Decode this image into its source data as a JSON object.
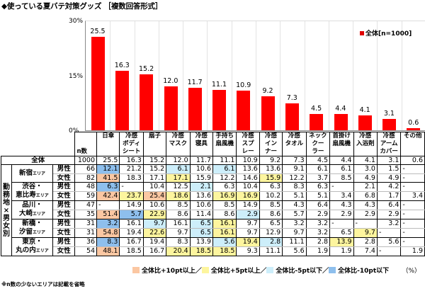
{
  "title": "◆使っている夏バテ対策グッズ ［複数回答形式］",
  "chart_data": {
    "type": "bar",
    "title": "使っている夏バテ対策グッズ ［複数回答形式］",
    "categories": [
      "日傘",
      "冷感ボディシート",
      "扇子",
      "冷感マスク",
      "冷感寝具",
      "手持ち扇風機",
      "冷感スプレー",
      "冷感インナー",
      "冷感タオル",
      "ネッククーラー",
      "首掛け扇風機",
      "冷感入浴剤",
      "冷感アームカバー",
      "その他"
    ],
    "series": [
      {
        "name": "全体[n=1000]",
        "color": "#ff0000",
        "values": [
          25.5,
          16.3,
          15.2,
          12.0,
          11.7,
          11.1,
          10.9,
          9.2,
          7.3,
          4.5,
          4.4,
          4.1,
          3.1,
          0.6
        ]
      }
    ],
    "value_labels": [
      "25.5",
      "16.3",
      "15.2",
      "12.0",
      "11.7",
      "11.1",
      "10.9",
      "9.2",
      "7.3",
      "4.5",
      "4.4",
      "4.1",
      "3.1",
      "0.6"
    ],
    "xlabel": "",
    "ylabel": "",
    "ylim": [
      0,
      30
    ],
    "yticks": [
      "0%",
      "15%",
      "30%"
    ],
    "grid": "vertical",
    "legend_position": "top-right"
  },
  "legend": {
    "label": "全体[n=1000]"
  },
  "table": {
    "n_header": "n数",
    "headers": [
      [
        "日傘"
      ],
      [
        "冷感",
        "ボディ",
        "シート"
      ],
      [
        "扇子"
      ],
      [
        "冷感",
        "マスク"
      ],
      [
        "冷感",
        "寝具"
      ],
      [
        "手持ち",
        "扇風機"
      ],
      [
        "冷感",
        "スプ",
        "レー"
      ],
      [
        "冷感",
        "イン",
        "ナー"
      ],
      [
        "冷感",
        "タオル"
      ],
      [
        "ネック",
        "クー",
        "ラー"
      ],
      [
        "首掛け",
        "扇風機"
      ],
      [
        "冷感",
        "入浴剤"
      ],
      [
        "冷感",
        "アーム",
        "カバー"
      ],
      [
        "その他"
      ]
    ],
    "total": {
      "label": "全体",
      "n": "1000",
      "values": [
        "25.5",
        "16.3",
        "15.2",
        "12.0",
        "11.7",
        "11.1",
        "10.9",
        "9.2",
        "7.3",
        "4.5",
        "4.4",
        "4.1",
        "3.1",
        "0.6"
      ]
    },
    "group_label": "勤務地×男女別",
    "group_label_chars": [
      "勤",
      "務",
      "地",
      "×",
      "男",
      "女",
      "別"
    ],
    "area_suffix": "エリア",
    "areas": [
      {
        "name_lines": [
          "新宿"
        ],
        "rows": [
          {
            "sex": "男性",
            "n": "66",
            "values": [
              "12.1",
              "21.2",
              "15.2",
              "6.1",
              "10.6",
              "6.1",
              "13.6",
              "13.6",
              "9.1",
              "6.1",
              "6.1",
              "3.0",
              "1.5",
              "-"
            ],
            "hl": [
              "m10",
              "",
              "",
              "m5",
              "",
              "m5",
              "",
              "",
              "",
              "",
              "",
              "",
              "",
              ""
            ]
          },
          {
            "sex": "女性",
            "n": "82",
            "values": [
              "41.5",
              "18.3",
              "17.1",
              "17.1",
              "15.9",
              "12.2",
              "14.6",
              "15.9",
              "12.2",
              "3.7",
              "8.5",
              "4.9",
              "4.9",
              "-"
            ],
            "hl": [
              "p10",
              "",
              "",
              "p5",
              "",
              "",
              "",
              "p5",
              "",
              "",
              "",
              "",
              "",
              ""
            ]
          }
        ]
      },
      {
        "name_lines": [
          "渋谷・",
          "恵比寿"
        ],
        "rows": [
          {
            "sex": "男性",
            "n": "48",
            "values": [
              "6.3",
              "-",
              "10.4",
              "12.5",
              "2.1",
              "6.3",
              "10.4",
              "6.3",
              "8.3",
              "6.3",
              "-",
              "2.1",
              "4.2",
              "-"
            ],
            "hl": [
              "m10",
              "",
              "",
              "",
              "m5",
              "",
              "",
              "",
              "",
              "",
              "",
              "",
              "",
              ""
            ]
          },
          {
            "sex": "女性",
            "n": "59",
            "values": [
              "42.4",
              "23.7",
              "25.4",
              "18.6",
              "13.6",
              "16.9",
              "16.9",
              "10.2",
              "5.1",
              "5.1",
              "3.4",
              "6.8",
              "1.7",
              "3.4"
            ],
            "hl": [
              "p10",
              "p5",
              "p10",
              "p5",
              "",
              "p5",
              "p5",
              "",
              "",
              "",
              "",
              "",
              "",
              ""
            ]
          }
        ]
      },
      {
        "name_lines": [
          "品川・",
          "大崎"
        ],
        "rows": [
          {
            "sex": "男性",
            "n": "47",
            "values": [
              "-",
              "14.9",
              "10.6",
              "8.5",
              "10.6",
              "8.5",
              "14.9",
              "8.5",
              "4.3",
              "6.4",
              "4.3",
              "4.3",
              "6.4",
              "-"
            ],
            "hl": [
              "",
              "",
              "",
              "",
              "",
              "",
              "",
              "",
              "",
              "",
              "",
              "",
              "",
              ""
            ]
          },
          {
            "sex": "女性",
            "n": "35",
            "values": [
              "51.4",
              "5.7",
              "22.9",
              "8.6",
              "11.4",
              "8.6",
              "2.9",
              "8.6",
              "5.7",
              "2.9",
              "2.9",
              "2.9",
              "2.9",
              "-"
            ],
            "hl": [
              "p10",
              "m10",
              "p5",
              "",
              "",
              "",
              "m5",
              "",
              "",
              "",
              "",
              "",
              "",
              ""
            ]
          }
        ]
      },
      {
        "name_lines": [
          "新橋・",
          "汐留"
        ],
        "rows": [
          {
            "sex": "男性",
            "n": "31",
            "values": [
              "3.2",
              "16.1",
              "9.7",
              "16.1",
              "6.5",
              "16.1",
              "9.7",
              "6.5",
              "3.2",
              "3.2",
              "-",
              "-",
              "3.2",
              "-"
            ],
            "hl": [
              "m10",
              "",
              "m5",
              "",
              "m5",
              "p5",
              "",
              "",
              "",
              "",
              "",
              "",
              "",
              ""
            ]
          },
          {
            "sex": "女性",
            "n": "31",
            "values": [
              "54.8",
              "19.4",
              "22.6",
              "9.7",
              "6.5",
              "16.1",
              "9.7",
              "12.9",
              "9.7",
              "3.2",
              "6.5",
              "9.7",
              "-",
              "-"
            ],
            "hl": [
              "p10",
              "",
              "p5",
              "",
              "m5",
              "p5",
              "",
              "",
              "",
              "",
              "",
              "p5",
              "",
              ""
            ]
          }
        ]
      },
      {
        "name_lines": [
          "東京・",
          "丸の内"
        ],
        "rows": [
          {
            "sex": "男性",
            "n": "36",
            "values": [
              "8.3",
              "16.7",
              "19.4",
              "8.3",
              "13.9",
              "5.6",
              "19.4",
              "2.8",
              "11.1",
              "2.8",
              "13.9",
              "2.8",
              "5.6",
              "-"
            ],
            "hl": [
              "m10",
              "",
              "",
              "",
              "",
              "m5",
              "p5",
              "m5",
              "",
              "",
              "p5",
              "",
              "",
              ""
            ]
          },
          {
            "sex": "女性",
            "n": "54",
            "values": [
              "48.1",
              "18.5",
              "16.7",
              "20.4",
              "18.5",
              "18.5",
              "9.3",
              "11.1",
              "5.6",
              "1.9",
              "1.9",
              "7.4",
              "-",
              "1.9"
            ],
            "hl": [
              "p10",
              "",
              "",
              "p5",
              "p5",
              "p5",
              "",
              "",
              "",
              "",
              "",
              "",
              "",
              ""
            ]
          }
        ]
      }
    ]
  },
  "highlight_legend": [
    {
      "key": "p10",
      "label": "全体比+10pt以上",
      "color": "#fbc7a2"
    },
    {
      "key": "p5",
      "label": "全体比+5pt以上",
      "color": "#fdf59e"
    },
    {
      "key": "m5",
      "label": "全体比-5pt以下",
      "color": "#cdeefa"
    },
    {
      "key": "m10",
      "label": "全体比-10pt以下",
      "color": "#8ebfed"
    }
  ],
  "unit_label": "（%）",
  "footnote": "※n数の少ないエリアは記載を省略"
}
